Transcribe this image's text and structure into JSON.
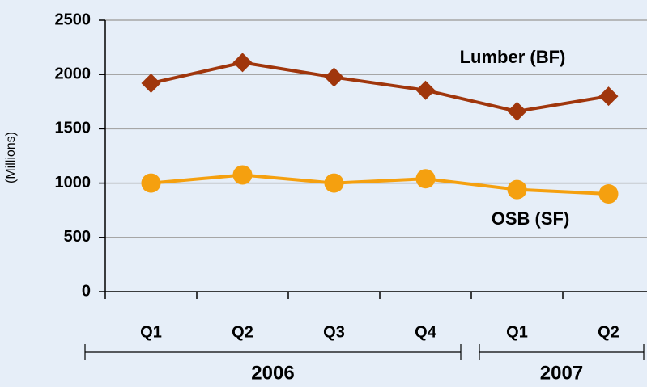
{
  "chart_data": {
    "type": "line",
    "ylabel": "(Millions)",
    "groups": [
      {
        "label": "2006",
        "categories": [
          "Q1",
          "Q2",
          "Q3",
          "Q4"
        ]
      },
      {
        "label": "2007",
        "categories": [
          "Q1",
          "Q2"
        ]
      }
    ],
    "series": [
      {
        "name": "Lumber (BF)",
        "color": "#a0360c",
        "marker": "diamond",
        "values": [
          1920,
          2110,
          1975,
          1855,
          1660,
          1800
        ]
      },
      {
        "name": "OSB (SF)",
        "color": "#f5a00f",
        "marker": "circle",
        "values": [
          1000,
          1075,
          1000,
          1040,
          940,
          900
        ]
      }
    ],
    "ylim": [
      0,
      2500
    ],
    "yticks": [
      0,
      500,
      1000,
      1500,
      2000,
      2500
    ],
    "grid": true
  }
}
